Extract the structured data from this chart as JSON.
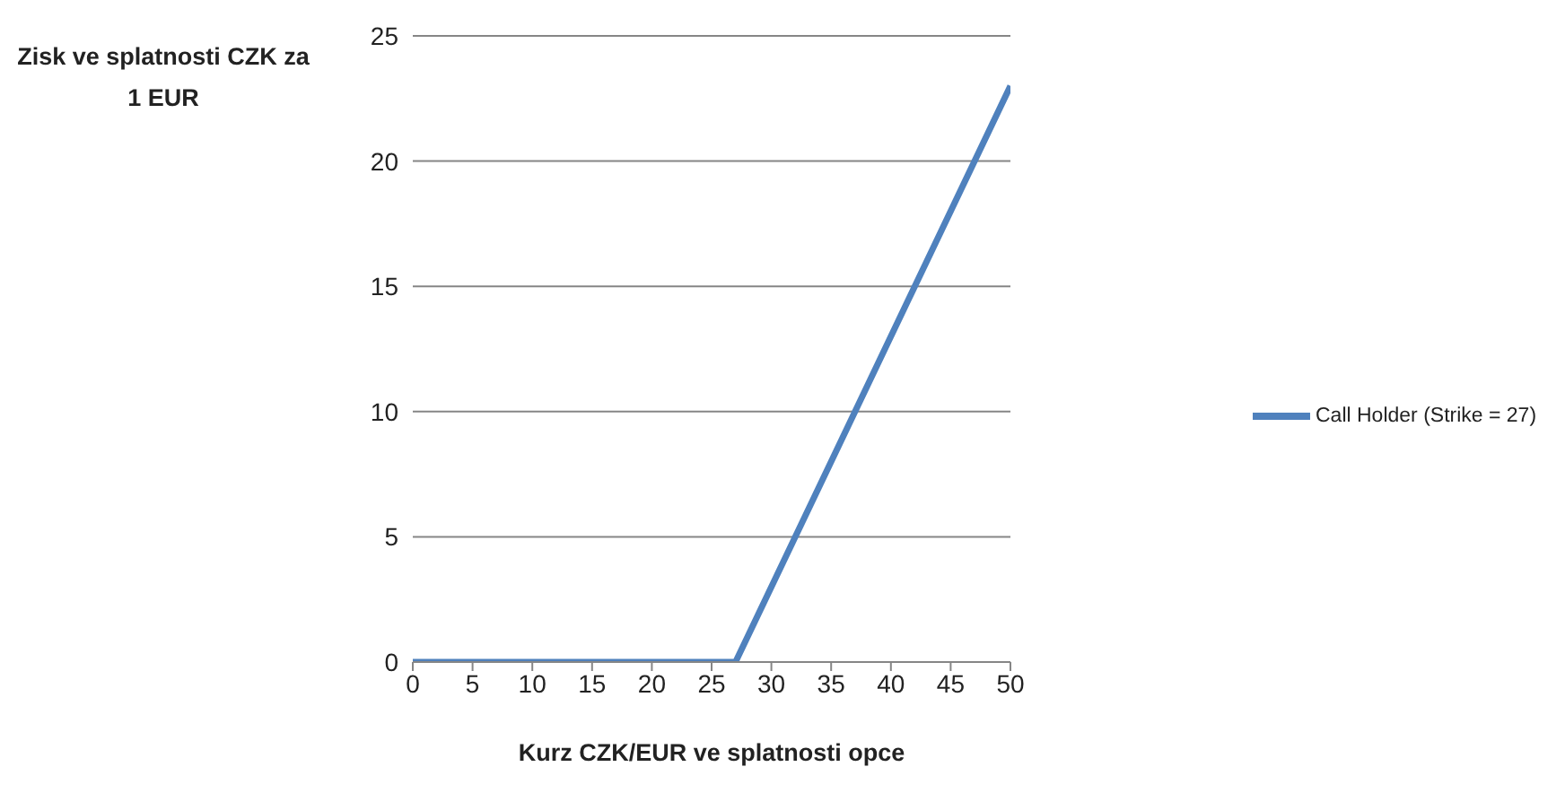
{
  "chart_data": {
    "type": "line",
    "xlabel": "Kurz CZK/EUR  ve splatnosti opce",
    "ylabel": "Zisk ve splatnosti CZK za 1 EUR",
    "x": [
      0,
      27,
      50
    ],
    "series": [
      {
        "name": "Call Holder (Strike = 27)",
        "color": "#4f81bd",
        "values": [
          0,
          0,
          23
        ]
      }
    ],
    "xlim": [
      0,
      50
    ],
    "xticks": [
      0,
      5,
      10,
      15,
      20,
      25,
      30,
      35,
      40,
      45,
      50
    ],
    "ylim": [
      0,
      25
    ],
    "yticks": [
      0,
      5,
      10,
      15,
      20,
      25
    ],
    "grid": "y",
    "legend": "right",
    "marker": "none",
    "line_style": "solid"
  }
}
